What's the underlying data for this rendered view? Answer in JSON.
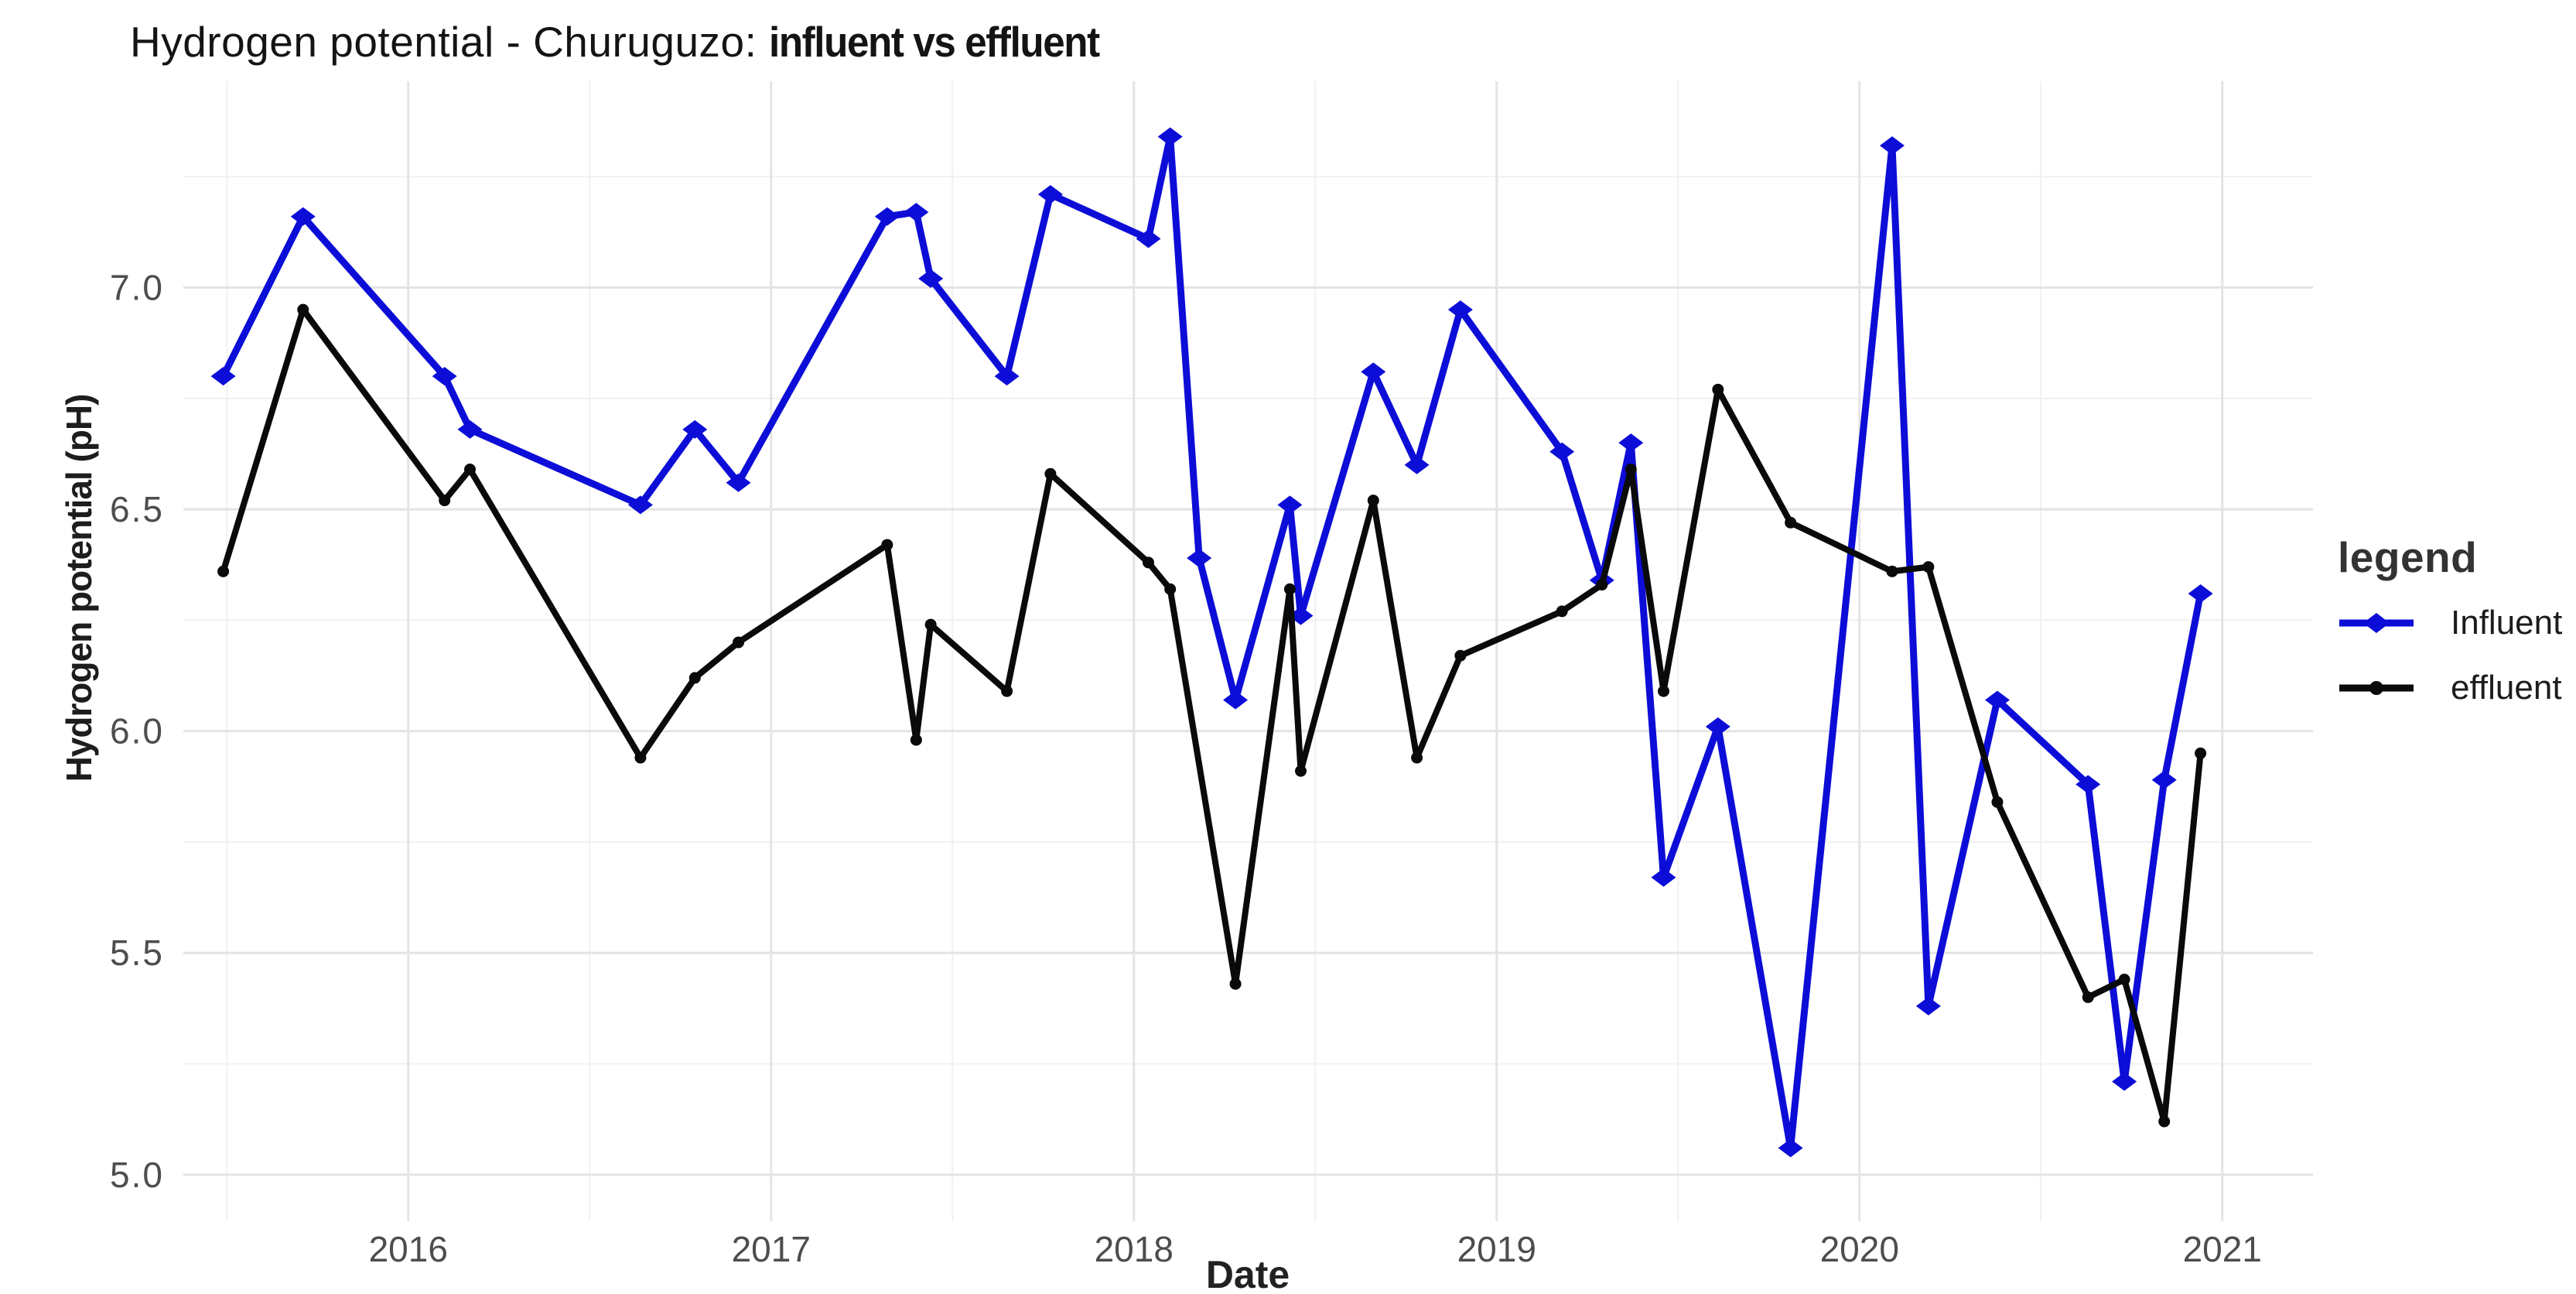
{
  "header": {
    "title_regular": "Hydrogen potential - Churuguzo: ",
    "title_bold": "influent vs effluent"
  },
  "axes": {
    "x": {
      "title": "Date",
      "ticks": [
        "2016",
        "2017",
        "2018",
        "2019",
        "2020",
        "2021"
      ],
      "tick_values": [
        2016,
        2017,
        2018,
        2019,
        2020,
        2021
      ]
    },
    "y": {
      "title": "Hydrogen potential (pH)",
      "ticks": [
        "5.0",
        "5.5",
        "6.0",
        "6.5",
        "7.0"
      ],
      "tick_values": [
        5.0,
        5.5,
        6.0,
        6.5,
        7.0
      ]
    }
  },
  "legend": {
    "title": "legend",
    "items": [
      {
        "label": "Influent",
        "color": "#0d0dd8",
        "marker": "diamond"
      },
      {
        "label": "effluent",
        "color": "#0a0a0a",
        "marker": "circle"
      }
    ]
  },
  "colors": {
    "influent": "#0d0dd8",
    "effluent": "#0a0a0a",
    "grid_major": "#e4e4e4",
    "grid_minor": "#f1f1f1",
    "tick_text": "#4d4d4d"
  },
  "chart_data": {
    "type": "line",
    "title": "Hydrogen potential - Churuguzo: influent vs effluent",
    "xlabel": "Date",
    "ylabel": "Hydrogen potential (pH)",
    "x_units": "decimal_year",
    "xlim": [
      2015.38,
      2021.25
    ],
    "ylim": [
      4.895,
      7.465
    ],
    "grid": {
      "major_x": [
        2016,
        2017,
        2018,
        2019,
        2020,
        2021
      ],
      "minor_x": [
        2015.5,
        2016.5,
        2017.5,
        2018.5,
        2019.5,
        2020.5
      ],
      "major_y": [
        5.0,
        5.5,
        6.0,
        6.5,
        7.0
      ],
      "minor_y": [
        5.25,
        5.75,
        6.25,
        6.75,
        7.25
      ]
    },
    "legend_position": "right",
    "series": [
      {
        "name": "Influent",
        "color": "#0d0dd8",
        "marker": "diamond",
        "points": [
          [
            2015.49,
            6.8
          ],
          [
            2015.71,
            7.16
          ],
          [
            2016.1,
            6.8
          ],
          [
            2016.17,
            6.68
          ],
          [
            2016.64,
            6.51
          ],
          [
            2016.79,
            6.68
          ],
          [
            2016.91,
            6.56
          ],
          [
            2017.32,
            7.16
          ],
          [
            2017.4,
            7.17
          ],
          [
            2017.44,
            7.02
          ],
          [
            2017.65,
            6.8
          ],
          [
            2017.77,
            7.21
          ],
          [
            2018.04,
            7.11
          ],
          [
            2018.1,
            7.34
          ],
          [
            2018.18,
            6.39
          ],
          [
            2018.28,
            6.07
          ],
          [
            2018.43,
            6.51
          ],
          [
            2018.46,
            6.26
          ],
          [
            2018.66,
            6.81
          ],
          [
            2018.78,
            6.6
          ],
          [
            2018.9,
            6.95
          ],
          [
            2019.18,
            6.63
          ],
          [
            2019.29,
            6.34
          ],
          [
            2019.37,
            6.65
          ],
          [
            2019.46,
            5.67
          ],
          [
            2019.61,
            6.01
          ],
          [
            2019.81,
            5.06
          ],
          [
            2020.09,
            7.32
          ],
          [
            2020.19,
            5.38
          ],
          [
            2020.38,
            6.07
          ],
          [
            2020.63,
            5.88
          ],
          [
            2020.73,
            5.21
          ],
          [
            2020.84,
            5.89
          ],
          [
            2020.94,
            6.31
          ]
        ]
      },
      {
        "name": "effluent",
        "color": "#0a0a0a",
        "marker": "circle",
        "points": [
          [
            2015.49,
            6.36
          ],
          [
            2015.71,
            6.95
          ],
          [
            2016.1,
            6.52
          ],
          [
            2016.17,
            6.59
          ],
          [
            2016.64,
            5.94
          ],
          [
            2016.79,
            6.12
          ],
          [
            2016.91,
            6.2
          ],
          [
            2017.32,
            6.42
          ],
          [
            2017.4,
            5.98
          ],
          [
            2017.44,
            6.24
          ],
          [
            2017.65,
            6.09
          ],
          [
            2017.77,
            6.58
          ],
          [
            2018.04,
            6.38
          ],
          [
            2018.1,
            6.32
          ],
          [
            2018.28,
            5.43
          ],
          [
            2018.43,
            6.32
          ],
          [
            2018.46,
            5.91
          ],
          [
            2018.66,
            6.52
          ],
          [
            2018.78,
            5.94
          ],
          [
            2018.9,
            6.17
          ],
          [
            2019.18,
            6.27
          ],
          [
            2019.29,
            6.33
          ],
          [
            2019.37,
            6.59
          ],
          [
            2019.46,
            6.09
          ],
          [
            2019.61,
            6.77
          ],
          [
            2019.81,
            6.47
          ],
          [
            2020.09,
            6.36
          ],
          [
            2020.19,
            6.37
          ],
          [
            2020.38,
            5.84
          ],
          [
            2020.63,
            5.4
          ],
          [
            2020.73,
            5.44
          ],
          [
            2020.84,
            5.12
          ],
          [
            2020.94,
            5.95
          ]
        ]
      }
    ]
  }
}
